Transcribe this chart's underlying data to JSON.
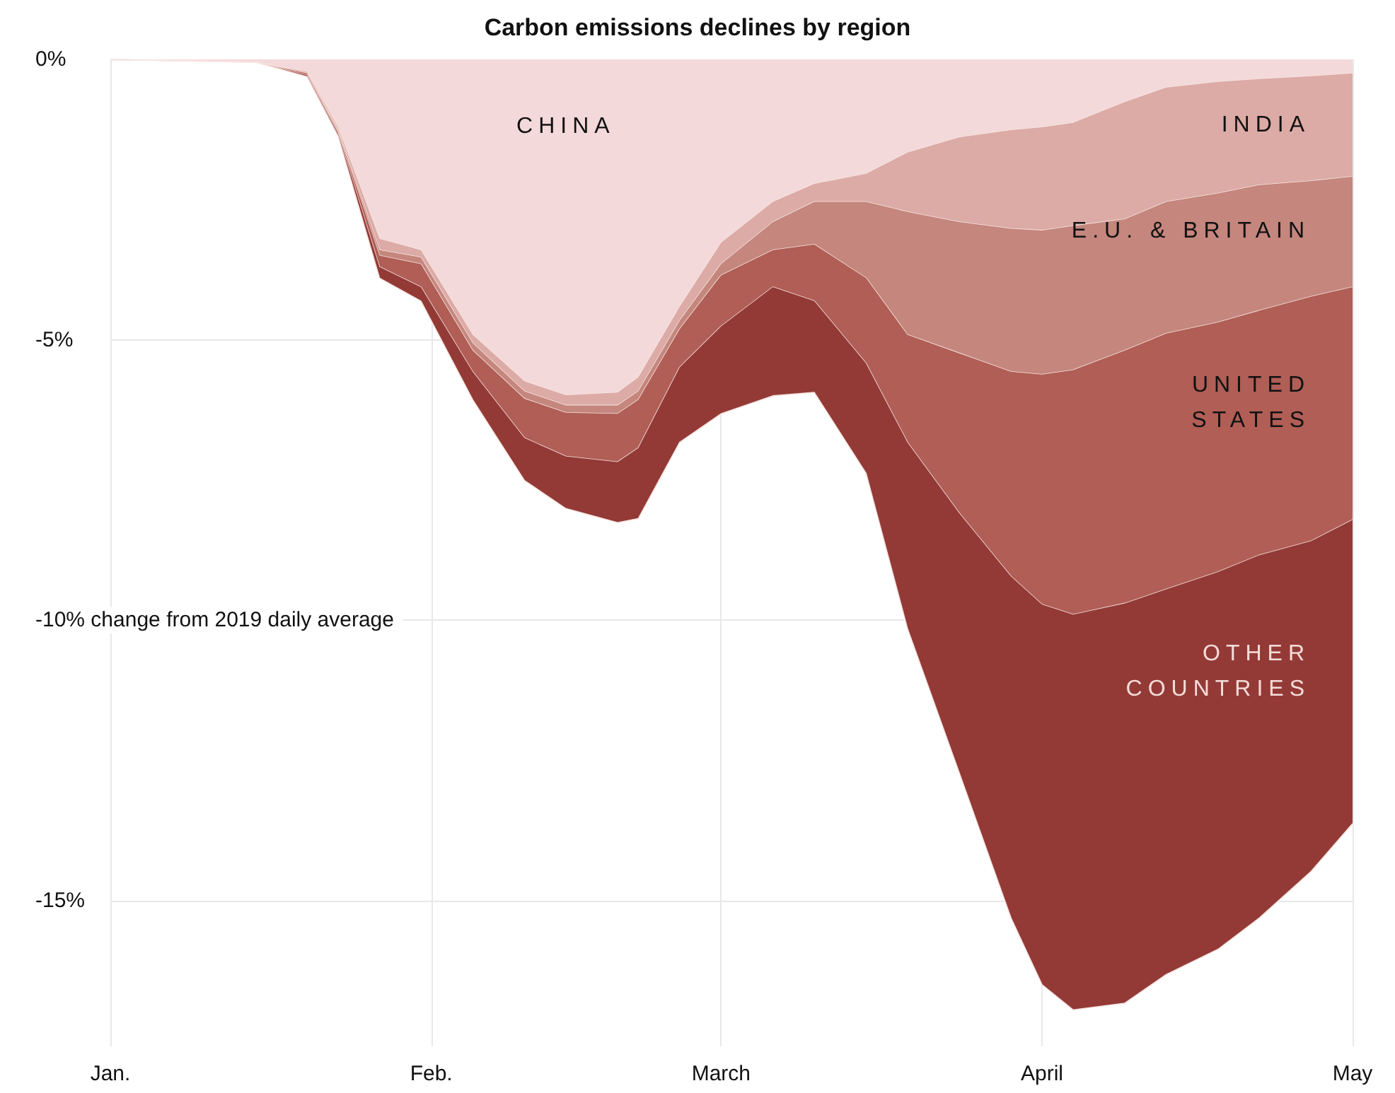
{
  "chart_data": {
    "type": "area",
    "stacked": true,
    "title": "Carbon emissions declines by region",
    "x": [
      "--01-01",
      "--01-15",
      "--01-20",
      "--01-23",
      "--01-27",
      "--01-31",
      "--02-05",
      "--02-10",
      "--02-14",
      "--02-19",
      "--02-21",
      "--02-25",
      "--03-01",
      "--03-06",
      "--03-10",
      "--03-15",
      "--03-19",
      "--03-24",
      "--03-29",
      "--04-01",
      "--04-04",
      "--04-09",
      "--04-13",
      "--04-18",
      "--04-22",
      "--04-27",
      "--05-01"
    ],
    "series": [
      {
        "name": "CHINA",
        "color": "#f3d9da",
        "values": [
          0,
          -0.05,
          -0.22,
          -1.21,
          -3.2,
          -3.4,
          -4.91,
          -5.74,
          -5.99,
          -5.94,
          -5.67,
          -4.41,
          -3.27,
          -2.54,
          -2.22,
          -2.04,
          -1.66,
          -1.39,
          -1.26,
          -1.21,
          -1.13,
          -0.76,
          -0.5,
          -0.4,
          -0.35,
          -0.3,
          -0.25
        ]
      },
      {
        "name": "INDIA",
        "color": "#dcaba6",
        "values": [
          0,
          0,
          -0.03,
          -0.05,
          -0.2,
          -0.13,
          -0.15,
          -0.18,
          -0.18,
          -0.23,
          -0.25,
          -0.25,
          -0.38,
          -0.36,
          -0.32,
          -0.5,
          -1.06,
          -1.51,
          -1.76,
          -1.84,
          -1.84,
          -2.09,
          -2.04,
          -1.99,
          -1.89,
          -1.87,
          -1.84
        ]
      },
      {
        "name": "E.U. & BRITAIN",
        "color": "#c4867d",
        "values": [
          0,
          0,
          0,
          -0.03,
          -0.1,
          -0.12,
          -0.13,
          -0.13,
          -0.13,
          -0.15,
          -0.15,
          -0.15,
          -0.2,
          -0.5,
          -0.76,
          -1.36,
          -2.19,
          -2.34,
          -2.55,
          -2.57,
          -2.57,
          -2.34,
          -2.35,
          -2.3,
          -2.24,
          -2.06,
          -1.97
        ]
      },
      {
        "name": "UNITED STATES",
        "color": "#b05e56",
        "values": [
          0,
          0,
          -0.03,
          -0.03,
          -0.2,
          -0.41,
          -0.38,
          -0.7,
          -0.78,
          -0.86,
          -0.86,
          -0.68,
          -0.91,
          -0.66,
          -1.01,
          -1.52,
          -1.92,
          -2.85,
          -3.65,
          -4.1,
          -4.36,
          -4.51,
          -4.56,
          -4.45,
          -4.36,
          -4.36,
          -4.15
        ]
      },
      {
        "name": "OTHER COUNTRIES",
        "color": "#933a37",
        "values": [
          0,
          0,
          -0.03,
          -0.05,
          -0.2,
          -0.25,
          -0.5,
          -0.76,
          -0.93,
          -1.08,
          -1.26,
          -1.34,
          -1.56,
          -1.94,
          -1.63,
          -1.96,
          -3.32,
          -4.63,
          -6.09,
          -6.78,
          -7.05,
          -7.13,
          -6.87,
          -6.73,
          -6.47,
          -5.89,
          -5.42
        ]
      }
    ],
    "xlim": [
      "--01-01",
      "--05-01"
    ],
    "xticks": [
      {
        "value": "--01-01",
        "label": "Jan."
      },
      {
        "value": "--02-01",
        "label": "Feb."
      },
      {
        "value": "--03-01",
        "label": "March"
      },
      {
        "value": "--04-01",
        "label": "April"
      },
      {
        "value": "--05-01",
        "label": "May"
      }
    ],
    "ylim": [
      -17.6,
      0
    ],
    "yticks": [
      {
        "value": 0,
        "label": "0%"
      },
      {
        "value": -5,
        "label": "-5%"
      },
      {
        "value": -10,
        "label": "-10% change from 2019 daily average"
      },
      {
        "value": -15,
        "label": "-15%"
      }
    ],
    "grid": true,
    "marker": "none"
  }
}
